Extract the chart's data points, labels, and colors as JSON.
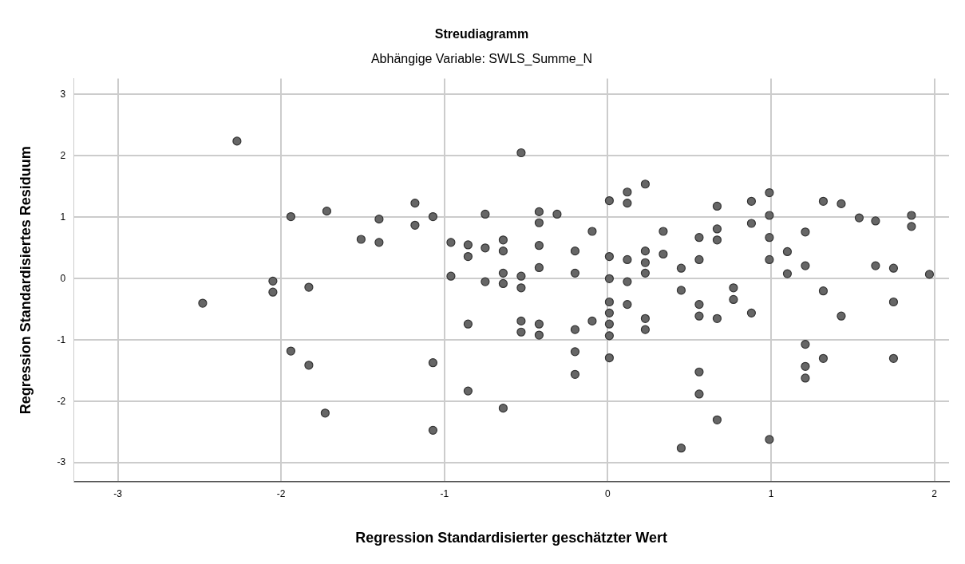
{
  "chart_data": {
    "type": "scatter",
    "title": "Streudiagramm",
    "subtitle": "Abhängige Variable: SWLS_Summe_N",
    "xlabel": "Regression Standardisierter geschätzter Wert",
    "ylabel": "Regression Standardisiertes Residuum",
    "xlim": [
      -3.27,
      2.09
    ],
    "ylim": [
      -3.31,
      3.26
    ],
    "xticks": [
      -3,
      -2,
      -1,
      0,
      1,
      2
    ],
    "yticks": [
      -3,
      -2,
      -1,
      0,
      1,
      2,
      3
    ],
    "grid": true,
    "legend": false,
    "marker": "circle",
    "series": [
      {
        "color": "#666666",
        "x": [
          -2.27,
          -1.94,
          -1.72,
          -1.51,
          -2.05,
          -2.05,
          -1.83,
          -2.48,
          -1.94,
          -1.83,
          -1.73,
          -0.53,
          -1.4,
          -1.4,
          -1.18,
          -1.18,
          -1.07,
          -0.75,
          -0.96,
          -0.96,
          -0.855,
          -0.855,
          -0.75,
          -0.64,
          -0.64,
          -0.64,
          -0.64,
          -0.75,
          -0.53,
          -0.53,
          -0.42,
          -0.42,
          -0.42,
          -0.42,
          -0.31,
          -0.2,
          -0.2,
          -0.095,
          0.01,
          0.01,
          0.01,
          0.12,
          0.12,
          0.12,
          0.12,
          0.23,
          0.23,
          0.23,
          0.23,
          0.34,
          0.34,
          0.45,
          0.56,
          0.56,
          0.67,
          0.67,
          0.67,
          0.88,
          0.88,
          0.99,
          0.99,
          0.99,
          0.99,
          1.1,
          1.1,
          1.21,
          1.21,
          1.32,
          1.43,
          1.54,
          1.64,
          1.64,
          1.75,
          1.86,
          1.86,
          1.97,
          0.01,
          0.12,
          0.01,
          -0.855,
          -0.53,
          -0.53,
          -0.42,
          -0.42,
          -0.2,
          -0.095,
          0.01,
          0.01,
          0.23,
          0.23,
          -1.07,
          -0.2,
          0.01,
          -0.2,
          -0.855,
          -0.64,
          -1.07,
          0.45,
          0.77,
          0.77,
          0.56,
          0.56,
          0.67,
          0.88,
          1.32,
          1.75,
          1.43,
          1.21,
          1.32,
          1.75,
          1.21,
          1.21,
          0.56,
          0.56,
          0.67,
          0.45,
          0.99
        ],
        "values": [
          2.24,
          1.01,
          1.1,
          0.64,
          -0.04,
          -0.22,
          -0.14,
          -0.4,
          -1.18,
          -1.41,
          -2.19,
          2.05,
          0.97,
          0.59,
          1.23,
          0.87,
          1.01,
          1.05,
          0.59,
          0.04,
          0.55,
          0.36,
          0.5,
          0.63,
          0.45,
          0.09,
          -0.08,
          -0.05,
          0.04,
          -0.15,
          1.09,
          0.91,
          0.54,
          0.18,
          1.05,
          0.45,
          0.09,
          0.77,
          1.27,
          0.36,
          0.0,
          1.41,
          1.23,
          0.31,
          -0.05,
          1.54,
          0.45,
          0.26,
          0.09,
          0.77,
          0.4,
          0.17,
          0.67,
          0.31,
          1.18,
          0.81,
          0.63,
          1.26,
          0.9,
          1.4,
          1.03,
          0.67,
          0.31,
          0.44,
          0.08,
          0.76,
          0.21,
          1.26,
          1.22,
          0.99,
          0.94,
          0.21,
          0.17,
          1.03,
          0.85,
          0.07,
          -0.38,
          -0.42,
          -0.56,
          -0.74,
          -0.69,
          -0.87,
          -0.74,
          -0.92,
          -0.83,
          -0.69,
          -0.74,
          -0.93,
          -0.65,
          -0.83,
          -1.37,
          -1.19,
          -1.29,
          -1.56,
          -1.83,
          -2.11,
          -2.47,
          -0.19,
          -0.15,
          -0.34,
          -0.42,
          -0.61,
          -0.65,
          -0.56,
          -0.2,
          -0.38,
          -0.61,
          -1.07,
          -1.3,
          -1.3,
          -1.43,
          -1.62,
          -1.52,
          -1.88,
          -2.3,
          -2.76,
          -2.62
        ]
      }
    ]
  }
}
